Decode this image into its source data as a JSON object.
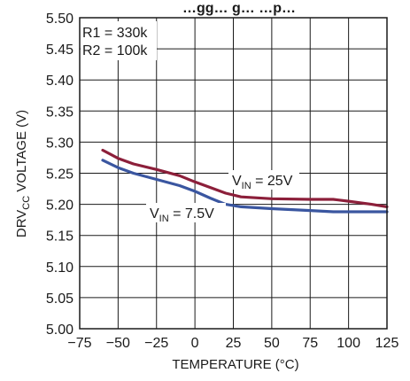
{
  "chart_data": {
    "type": "line",
    "title": "…gg… g… …p…",
    "xlabel": "TEMPERATURE (°C)",
    "ylabel": {
      "main": "DRV",
      "sub": "CC",
      "rest": " VOLTAGE (V)"
    },
    "xlim": [
      -75,
      125
    ],
    "ylim": [
      5.0,
      5.5
    ],
    "xticks": [
      -75,
      -50,
      -25,
      0,
      25,
      50,
      75,
      100,
      125
    ],
    "yticks": [
      5.0,
      5.05,
      5.1,
      5.15,
      5.2,
      5.25,
      5.3,
      5.35,
      5.4,
      5.45,
      5.5
    ],
    "xtick_labels": [
      "−75",
      "−50",
      "−25",
      "0",
      "25",
      "50",
      "75",
      "100",
      "125"
    ],
    "ytick_labels": [
      "5.00",
      "5.05",
      "5.10",
      "5.15",
      "5.20",
      "5.25",
      "5.30",
      "5.35",
      "5.40",
      "5.45",
      "5.50"
    ],
    "grid": true,
    "annotations": {
      "r1": "R1 = 330k",
      "r2": "R2 = 100k",
      "vin25": {
        "main": "V",
        "sub": "IN",
        "rest": " = 25V"
      },
      "vin75": {
        "main": "V",
        "sub": "IN",
        "rest": " = 7.5V"
      }
    },
    "series": [
      {
        "color": "#8c1f3a",
        "label_key": "vin25",
        "points": [
          [
            -60,
            5.287
          ],
          [
            -50,
            5.274
          ],
          [
            -40,
            5.265
          ],
          [
            -25,
            5.256
          ],
          [
            -10,
            5.246
          ],
          [
            0,
            5.236
          ],
          [
            10,
            5.227
          ],
          [
            20,
            5.218
          ],
          [
            30,
            5.212
          ],
          [
            50,
            5.209
          ],
          [
            75,
            5.208
          ],
          [
            90,
            5.208
          ],
          [
            100,
            5.205
          ],
          [
            115,
            5.2
          ],
          [
            125,
            5.196
          ]
        ]
      },
      {
        "color": "#3a56a0",
        "label_key": "vin75",
        "points": [
          [
            -60,
            5.271
          ],
          [
            -50,
            5.259
          ],
          [
            -40,
            5.25
          ],
          [
            -25,
            5.24
          ],
          [
            -10,
            5.23
          ],
          [
            0,
            5.221
          ],
          [
            10,
            5.21
          ],
          [
            20,
            5.2
          ],
          [
            30,
            5.196
          ],
          [
            50,
            5.193
          ],
          [
            75,
            5.19
          ],
          [
            90,
            5.188
          ],
          [
            100,
            5.188
          ],
          [
            125,
            5.188
          ]
        ]
      }
    ]
  }
}
